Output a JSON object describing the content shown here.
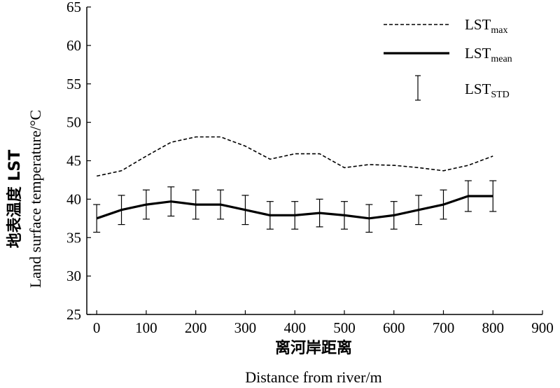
{
  "chart_data": {
    "type": "line",
    "ylabel_cn": "地表温度 LST",
    "ylabel_en": "Land surface temperature/°C",
    "xlabel_cn": "离河岸距离",
    "xlabel_en": "Distance from river/m",
    "xlim": [
      -20,
      900
    ],
    "ylim": [
      25,
      65
    ],
    "xticks": [
      0,
      100,
      200,
      300,
      400,
      500,
      600,
      700,
      800,
      900
    ],
    "yticks": [
      25,
      30,
      35,
      40,
      45,
      50,
      55,
      60,
      65
    ],
    "x": [
      0,
      50,
      100,
      150,
      200,
      250,
      300,
      350,
      400,
      450,
      500,
      550,
      600,
      650,
      700,
      750,
      800
    ],
    "series": [
      {
        "name": "LST",
        "subscript": "max",
        "style": "dashed",
        "values": [
          43.0,
          43.7,
          45.6,
          47.4,
          48.1,
          48.1,
          46.9,
          45.2,
          45.9,
          45.9,
          44.1,
          44.5,
          44.4,
          44.1,
          43.7,
          44.4,
          45.6
        ]
      },
      {
        "name": "LST",
        "subscript": "mean",
        "style": "solid",
        "values": [
          37.5,
          38.6,
          39.3,
          39.7,
          39.3,
          39.3,
          38.6,
          37.9,
          37.9,
          38.2,
          37.9,
          37.5,
          37.9,
          38.6,
          39.3,
          40.4,
          40.4
        ]
      }
    ],
    "error_bars": {
      "name": "LST",
      "subscript": "STD",
      "std": [
        1.8,
        1.9,
        1.9,
        1.9,
        1.9,
        1.9,
        1.9,
        1.8,
        1.8,
        1.8,
        1.8,
        1.8,
        1.8,
        1.9,
        1.9,
        2.0,
        2.0
      ]
    },
    "legend_position": "top-right",
    "grid": false
  }
}
